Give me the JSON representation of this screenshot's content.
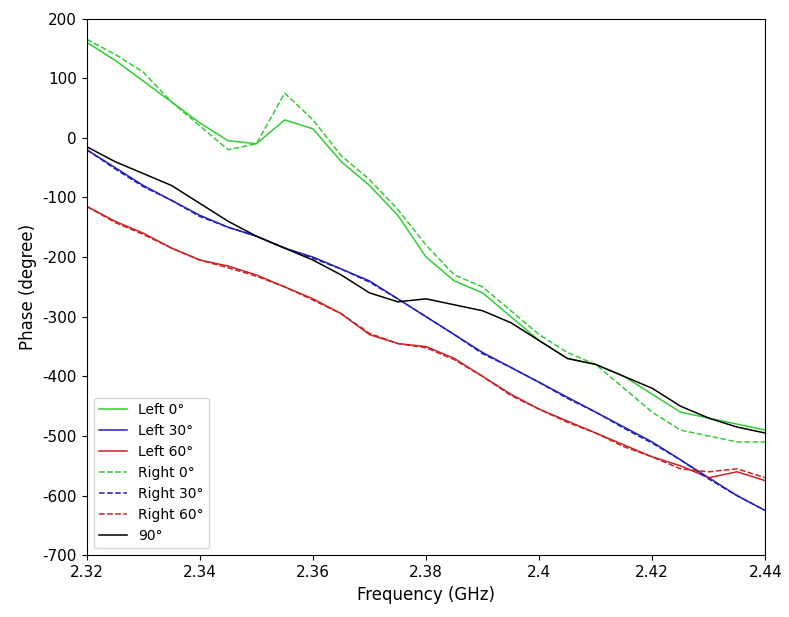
{
  "chart_data": {
    "type": "line",
    "x_label": "Frequency (GHz)",
    "y_label": "Phase (degree)",
    "x": [
      2.32,
      2.325,
      2.33,
      2.335,
      2.34,
      2.345,
      2.35,
      2.355,
      2.36,
      2.365,
      2.37,
      2.375,
      2.38,
      2.385,
      2.39,
      2.395,
      2.4,
      2.405,
      2.41,
      2.415,
      2.42,
      2.425,
      2.43,
      2.435,
      2.44
    ],
    "series": [
      {
        "name": "Left 0°",
        "color": "#33cc33",
        "line_style": "solid",
        "values": [
          160,
          130,
          95,
          60,
          25,
          -5,
          -10,
          30,
          15,
          -40,
          -80,
          -130,
          -200,
          -240,
          -260,
          -300,
          -340,
          -370,
          -380,
          -400,
          -430,
          -460,
          -470,
          -480,
          -490
        ]
      },
      {
        "name": "Left 30°",
        "color": "#2222bb",
        "line_style": "solid",
        "values": [
          -20,
          -50,
          -80,
          -105,
          -130,
          -150,
          -165,
          -185,
          -200,
          -220,
          -240,
          -270,
          -300,
          -330,
          -360,
          -385,
          -410,
          -435,
          -460,
          -485,
          -510,
          -540,
          -570,
          -600,
          -625
        ]
      },
      {
        "name": "Left 60°",
        "color": "#cc2222",
        "line_style": "solid",
        "values": [
          -115,
          -140,
          -160,
          -185,
          -205,
          -215,
          -230,
          -250,
          -270,
          -295,
          -330,
          -345,
          -350,
          -370,
          -400,
          -430,
          -455,
          -475,
          -495,
          -515,
          -535,
          -550,
          -570,
          -560,
          -575
        ]
      },
      {
        "name": "Right 0°",
        "color": "#33cc33",
        "line_style": "dashed",
        "values": [
          165,
          140,
          110,
          60,
          20,
          -20,
          -10,
          75,
          30,
          -30,
          -70,
          -120,
          -180,
          -230,
          -250,
          -290,
          -330,
          -360,
          -380,
          -420,
          -460,
          -490,
          -500,
          -510,
          -510
        ]
      },
      {
        "name": "Right 30°",
        "color": "#2222bb",
        "line_style": "dashed",
        "values": [
          -20,
          -52,
          -82,
          -105,
          -132,
          -150,
          -165,
          -185,
          -202,
          -220,
          -242,
          -270,
          -300,
          -330,
          -362,
          -385,
          -410,
          -437,
          -460,
          -487,
          -512,
          -540,
          -572,
          -600,
          -625
        ]
      },
      {
        "name": "Right 60°",
        "color": "#cc2222",
        "line_style": "dashed",
        "values": [
          -115,
          -142,
          -162,
          -185,
          -205,
          -218,
          -232,
          -250,
          -272,
          -295,
          -328,
          -345,
          -352,
          -372,
          -400,
          -432,
          -455,
          -477,
          -495,
          -518,
          -535,
          -555,
          -560,
          -555,
          -570
        ]
      },
      {
        "name": "90°",
        "color": "#000000",
        "line_style": "solid",
        "values": [
          -15,
          -40,
          -60,
          -80,
          -110,
          -140,
          -165,
          -185,
          -205,
          -230,
          -260,
          -275,
          -270,
          -280,
          -290,
          -310,
          -340,
          -370,
          -380,
          -400,
          -420,
          -450,
          -470,
          -485,
          -495
        ]
      }
    ],
    "xlim": [
      2.32,
      2.44
    ],
    "xticks": [
      2.32,
      2.34,
      2.36,
      2.38,
      2.4,
      2.42,
      2.44
    ],
    "ylim": [
      -700,
      200
    ],
    "yticks": [
      -700,
      -600,
      -500,
      -400,
      -300,
      -200,
      -100,
      0,
      100,
      200
    ],
    "grid": false,
    "legend": "lower left"
  }
}
